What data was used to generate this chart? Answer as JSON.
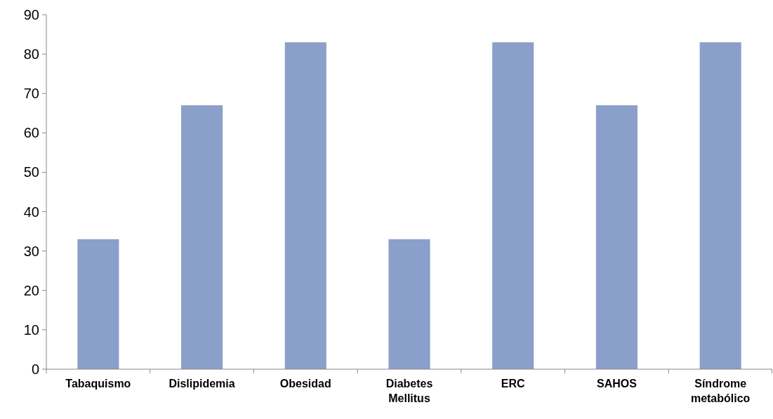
{
  "chart_data": {
    "type": "bar",
    "categories": [
      "Tabaquismo",
      "Dislipidemia",
      "Obesidad",
      "Diabetes Mellitus",
      "ERC",
      "SAHOS",
      "Síndrome metabólico"
    ],
    "values": [
      33,
      67,
      83,
      33,
      83,
      67,
      83
    ],
    "color": "#8a9fc9",
    "ylim": [
      0,
      90
    ],
    "yticks": [
      0,
      10,
      20,
      30,
      40,
      50,
      60,
      70,
      80,
      90
    ],
    "grid": false
  }
}
